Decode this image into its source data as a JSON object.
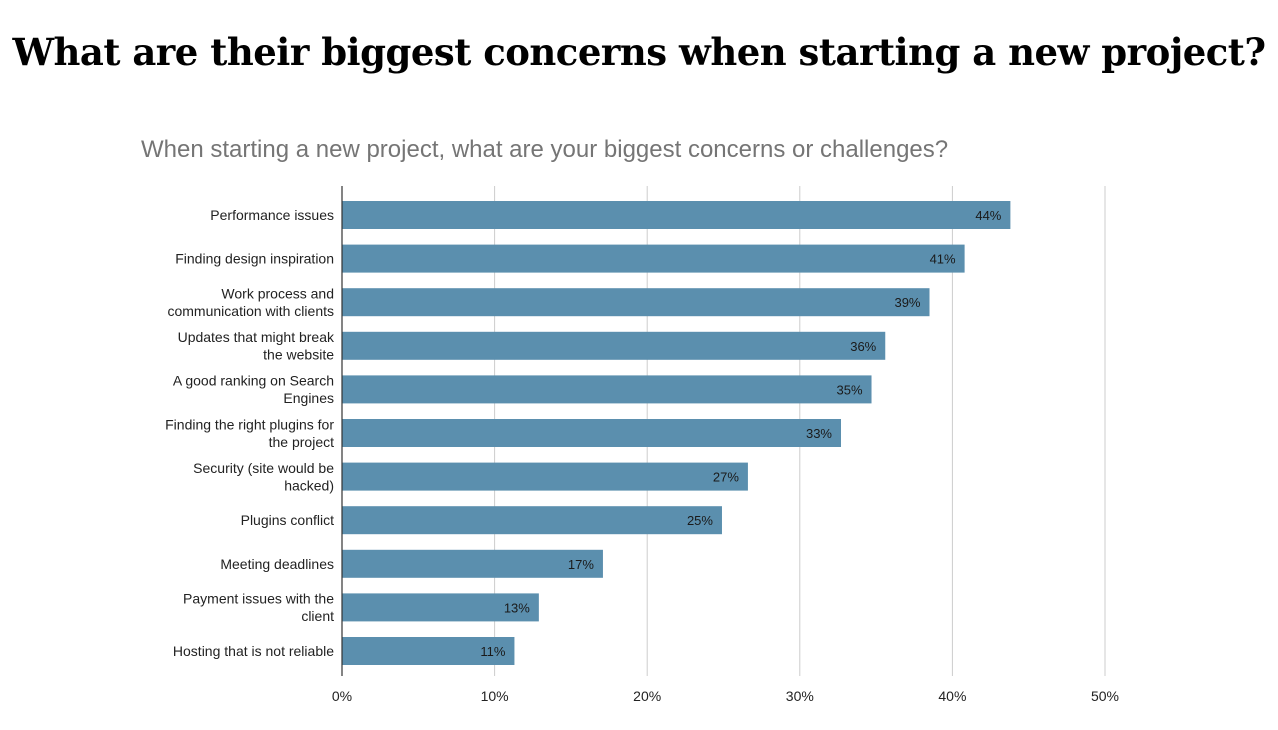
{
  "page": {
    "heading": "What are their biggest concerns when starting a new project?"
  },
  "chart_data": {
    "type": "bar",
    "orientation": "horizontal",
    "title": "When starting a new project, what are your biggest concerns or challenges?",
    "xlabel": "",
    "ylabel": "",
    "categories": [
      [
        "Performance issues"
      ],
      [
        "Finding design inspiration"
      ],
      [
        "Work process and",
        "communication with clients"
      ],
      [
        "Updates that might break",
        "the website"
      ],
      [
        "A good ranking on Search",
        "Engines"
      ],
      [
        "Finding the right plugins for",
        "the project"
      ],
      [
        "Security (site would be",
        "hacked)"
      ],
      [
        "Plugins conflict"
      ],
      [
        "Meeting deadlines"
      ],
      [
        "Payment issues with the",
        "client"
      ],
      [
        "Hosting that is not reliable"
      ]
    ],
    "values": [
      43.8,
      40.8,
      38.5,
      35.6,
      34.7,
      32.7,
      26.6,
      24.9,
      17.1,
      12.9,
      11.3
    ],
    "data_labels": [
      "44%",
      "41%",
      "39%",
      "36%",
      "35%",
      "33%",
      "27%",
      "25%",
      "17%",
      "13%",
      "11%"
    ],
    "xlim": [
      0,
      50
    ],
    "xticks": [
      0,
      10,
      20,
      30,
      40,
      50
    ],
    "xtick_labels": [
      "0%",
      "10%",
      "20%",
      "30%",
      "40%",
      "50%"
    ],
    "grid": true,
    "legend": "none",
    "colors": {
      "bar": "#5b8fae",
      "grid": "#cccccc",
      "axis": "#333333"
    }
  }
}
